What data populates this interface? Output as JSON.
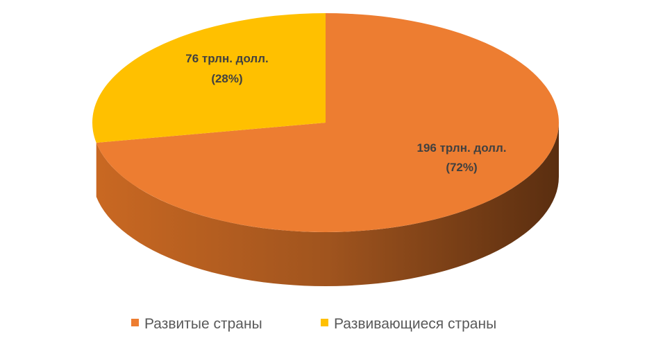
{
  "chart_data": {
    "type": "pie",
    "title": "",
    "slices": [
      {
        "name": "Развитые страны",
        "value": 196,
        "percent": 72,
        "label_line1": "196 трлн. долл.",
        "label_line2": "(72%)",
        "color": "#ED7D31"
      },
      {
        "name": "Развивающиеся страны",
        "value": 76,
        "percent": 28,
        "label_line1": "76 трлн. долл.",
        "label_line2": "(28%)",
        "color": "#FFC000"
      }
    ],
    "legend_position": "bottom",
    "style": "3d"
  },
  "colors": {
    "developed": "#ED7D31",
    "developed_side_light": "#C55A11",
    "developed_side_dark": "#5E2F12",
    "developing": "#FFC000"
  }
}
